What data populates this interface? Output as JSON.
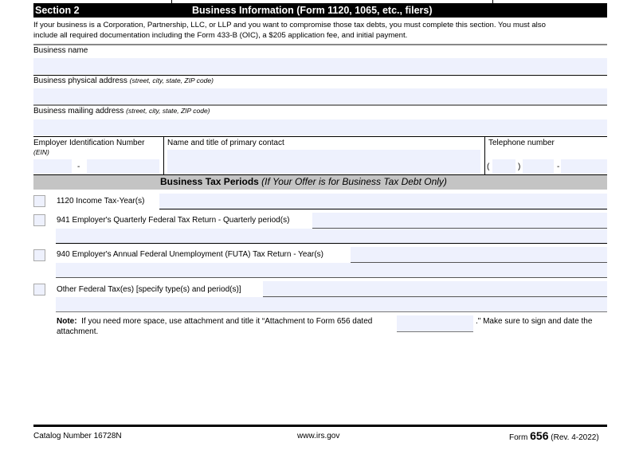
{
  "section": {
    "number": "Section 2",
    "title": "Business Information (Form 1120, 1065, etc., filers)"
  },
  "intro": [
    "If your business is a Corporation, Partnership, LLC, or LLP and you want to compromise those tax debts, you must complete this section. You must also",
    "include all required documentation including the Form 433-B (OIC), a $205 application fee, and initial payment."
  ],
  "fields": {
    "business_name": {
      "label": "Business name",
      "value": ""
    },
    "physical_address": {
      "label": "Business physical address",
      "hint": "(street, city, state, ZIP code)",
      "value": ""
    },
    "mailing_address": {
      "label": "Business mailing address",
      "hint": "(street, city, state, ZIP code)",
      "value": ""
    },
    "ein": {
      "label": "Employer Identification Number",
      "hint": "(EIN)",
      "sep": "-"
    },
    "contact": {
      "label": "Name and title of primary contact"
    },
    "phone": {
      "label": "Telephone number",
      "open": "(",
      "close": ")",
      "sep": "-"
    }
  },
  "tax_periods": {
    "title": "Business Tax Periods",
    "subtitle": "(If Your Offer is for Business Tax Debt Only)",
    "items": [
      {
        "label": "1120 Income Tax-Year(s)",
        "checked": false
      },
      {
        "label": "941 Employer's Quarterly Federal Tax Return - Quarterly period(s)",
        "checked": false
      },
      {
        "label": "940 Employer's Annual Federal Unemployment (FUTA) Tax Return - Year(s)",
        "checked": false
      },
      {
        "label": "Other Federal Tax(es) [specify type(s) and period(s)]",
        "checked": false
      }
    ]
  },
  "note": {
    "bold": "Note:",
    "text1": "If you need more space, use attachment and title it “Attachment to Form 656 dated",
    "text2": ".\" Make sure to sign and date the",
    "text3": "attachment."
  },
  "footer": {
    "catalog": "Catalog Number 16728N",
    "site": "www.irs.gov",
    "form_prefix": "Form",
    "form_number": "656",
    "rev": "(Rev. 4-2022)"
  }
}
